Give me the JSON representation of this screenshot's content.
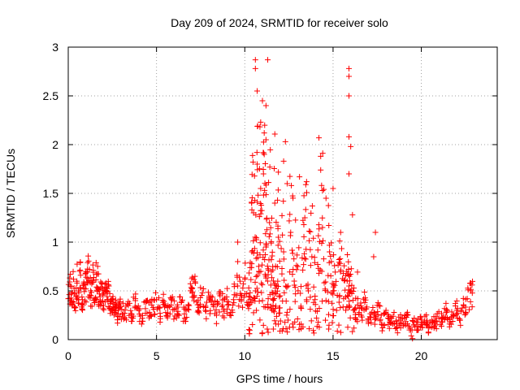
{
  "chart_data": {
    "type": "scatter",
    "title": "Day 209 of 2024, SRMTID for receiver solo",
    "xlabel": "GPS time / hours",
    "ylabel": "SRMTID / TECUs",
    "xlim": [
      0,
      24.3
    ],
    "ylim": [
      0,
      3
    ],
    "xticks": [
      0,
      5,
      10,
      15,
      20
    ],
    "yticks": [
      0,
      0.5,
      1,
      1.5,
      2,
      2.5,
      3
    ],
    "grid": true,
    "marker": "+",
    "color": "#ff0000",
    "series": [
      {
        "name": "SRMTID",
        "x": [
          0.0,
          0.1,
          0.2,
          0.3,
          0.4,
          0.5,
          0.6,
          0.7,
          0.8,
          0.9,
          1.0,
          1.1,
          1.2,
          1.3,
          1.4,
          1.5,
          1.6,
          1.7,
          1.8,
          1.9,
          2.0,
          2.1,
          2.2,
          2.3,
          2.4,
          2.5,
          2.6,
          2.7,
          2.8,
          2.9,
          3.0,
          3.2,
          3.4,
          3.6,
          3.8,
          4.0,
          4.2,
          4.4,
          4.6,
          4.8,
          5.0,
          5.2,
          5.4,
          5.6,
          5.8,
          6.0,
          6.2,
          6.4,
          6.6,
          6.8,
          7.0,
          7.1,
          7.2,
          7.4,
          7.6,
          7.8,
          8.0,
          8.2,
          8.4,
          8.6,
          8.8,
          9.0,
          9.2,
          9.4,
          9.6,
          9.8,
          10.0,
          10.2,
          10.3,
          10.4,
          10.5,
          10.6,
          10.7,
          10.8,
          10.9,
          11.0,
          11.1,
          11.2,
          11.3,
          11.4,
          11.5,
          11.6,
          11.7,
          11.8,
          11.9,
          12.0,
          12.2,
          12.4,
          12.6,
          12.8,
          13.0,
          13.2,
          13.4,
          13.6,
          13.8,
          14.0,
          14.2,
          14.4,
          14.6,
          14.8,
          15.0,
          15.2,
          15.4,
          15.6,
          15.8,
          15.9,
          16.0,
          16.2,
          16.4,
          16.6,
          16.8,
          17.0,
          17.2,
          17.4,
          17.6,
          17.8,
          18.0,
          18.2,
          18.4,
          18.6,
          18.8,
          19.0,
          19.2,
          19.4,
          19.6,
          19.8,
          20.0,
          20.2,
          20.4,
          20.6,
          20.8,
          21.0,
          21.2,
          21.4,
          21.6,
          21.8,
          22.0,
          22.2,
          22.4,
          22.6,
          22.8
        ],
        "y": [
          0.42,
          0.55,
          0.38,
          0.62,
          0.33,
          0.58,
          0.48,
          0.66,
          0.41,
          0.57,
          0.52,
          0.63,
          0.72,
          0.45,
          0.6,
          0.38,
          0.67,
          0.52,
          0.44,
          0.58,
          0.35,
          0.49,
          0.41,
          0.55,
          0.3,
          0.42,
          0.28,
          0.36,
          0.24,
          0.33,
          0.31,
          0.27,
          0.35,
          0.26,
          0.4,
          0.3,
          0.22,
          0.38,
          0.28,
          0.33,
          0.41,
          0.27,
          0.36,
          0.24,
          0.43,
          0.31,
          0.26,
          0.38,
          0.22,
          0.35,
          0.52,
          0.44,
          0.58,
          0.33,
          0.48,
          0.29,
          0.41,
          0.36,
          0.25,
          0.45,
          0.31,
          0.39,
          0.28,
          0.46,
          0.55,
          0.41,
          0.62,
          0.35,
          0.48,
          0.9,
          1.3,
          0.5,
          1.8,
          0.7,
          1.55,
          0.4,
          1.9,
          0.95,
          0.6,
          1.2,
          0.82,
          0.35,
          1.4,
          0.55,
          1.05,
          0.45,
          0.9,
          0.28,
          1.1,
          0.6,
          0.75,
          0.32,
          1.25,
          0.5,
          0.85,
          0.36,
          0.68,
          1.15,
          0.4,
          0.9,
          0.5,
          0.3,
          0.78,
          0.42,
          0.6,
          0.35,
          0.5,
          0.3,
          0.42,
          0.25,
          0.38,
          0.2,
          0.28,
          0.22,
          0.35,
          0.15,
          0.3,
          0.18,
          0.24,
          0.12,
          0.2,
          0.16,
          0.25,
          0.1,
          0.22,
          0.14,
          0.18,
          0.24,
          0.12,
          0.2,
          0.15,
          0.22,
          0.18,
          0.28,
          0.16,
          0.24,
          0.3,
          0.2,
          0.35,
          0.42,
          0.5
        ],
        "spikes": [
          {
            "x": 10.6,
            "y": 2.87
          },
          {
            "x": 10.6,
            "y": 2.78
          },
          {
            "x": 11.3,
            "y": 2.87
          },
          {
            "x": 10.7,
            "y": 2.55
          },
          {
            "x": 11.0,
            "y": 2.45
          },
          {
            "x": 11.2,
            "y": 2.4
          },
          {
            "x": 10.9,
            "y": 2.23
          },
          {
            "x": 11.1,
            "y": 2.12
          },
          {
            "x": 11.2,
            "y": 2.05
          },
          {
            "x": 12.3,
            "y": 2.03
          },
          {
            "x": 14.2,
            "y": 2.07
          },
          {
            "x": 14.3,
            "y": 1.88
          },
          {
            "x": 14.3,
            "y": 1.74
          },
          {
            "x": 15.9,
            "y": 2.78
          },
          {
            "x": 15.9,
            "y": 2.7
          },
          {
            "x": 15.9,
            "y": 2.5
          },
          {
            "x": 15.9,
            "y": 2.08
          },
          {
            "x": 16.0,
            "y": 1.98
          },
          {
            "x": 15.9,
            "y": 1.7
          },
          {
            "x": 12.2,
            "y": 1.83
          },
          {
            "x": 12.4,
            "y": 1.6
          },
          {
            "x": 13.1,
            "y": 1.67
          },
          {
            "x": 13.5,
            "y": 1.62
          },
          {
            "x": 14.6,
            "y": 1.45
          },
          {
            "x": 15.0,
            "y": 1.55
          },
          {
            "x": 16.1,
            "y": 1.28
          },
          {
            "x": 17.4,
            "y": 1.1
          },
          {
            "x": 17.3,
            "y": 0.85
          },
          {
            "x": 9.6,
            "y": 1.0
          },
          {
            "x": 9.6,
            "y": 0.8
          },
          {
            "x": 19.5,
            "y": 0.01
          }
        ]
      }
    ]
  }
}
